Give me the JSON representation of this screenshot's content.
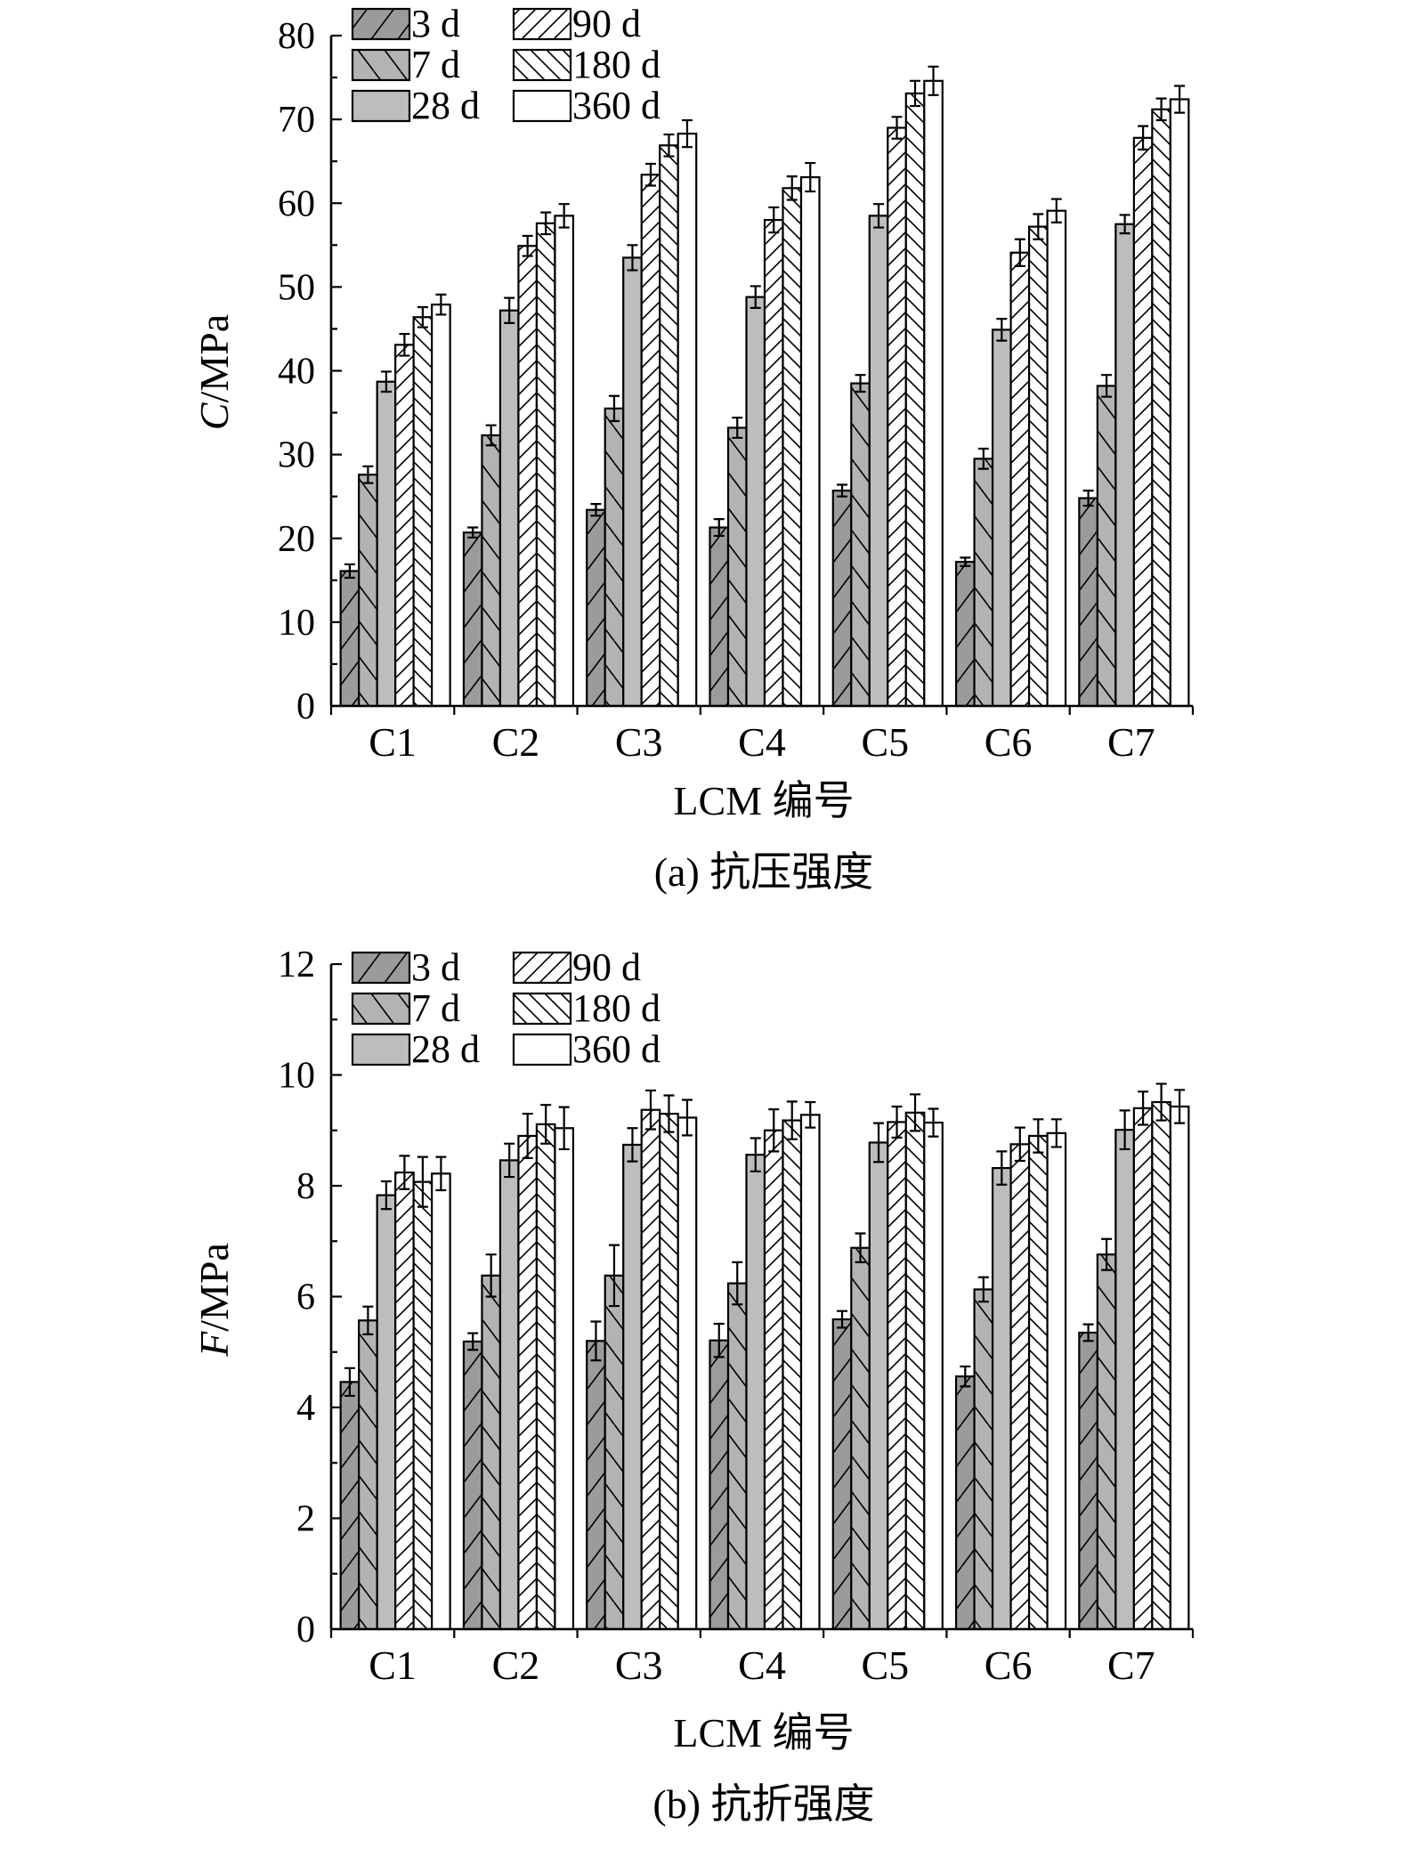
{
  "legend": [
    "3 d",
    "7 d",
    "28 d",
    "90 d",
    "180 d",
    "360 d"
  ],
  "styles": {
    "fills": [
      "#9b9b9b",
      "#b3b3b3",
      "#bdbdbd",
      "#ffffff",
      "#ffffff",
      "#ffffff"
    ],
    "hatch": [
      "fwd",
      "back",
      "none",
      "fwd",
      "back",
      "none"
    ]
  },
  "chart_data": [
    {
      "type": "bar",
      "title": "",
      "caption": "(a) 抗压强度",
      "xlabel": "LCM 编号",
      "ylabel_italic": "C",
      "ylabel_rest": "/MPa",
      "ylim": [
        0,
        80
      ],
      "yticks": [
        "0",
        "10",
        "20",
        "30",
        "40",
        "50",
        "60",
        "70",
        "80"
      ],
      "categories": [
        "C1",
        "C2",
        "C3",
        "C4",
        "C5",
        "C6",
        "C7"
      ],
      "legend_position": "top-left",
      "series": [
        {
          "name": "3 d",
          "values": [
            16.1,
            20.7,
            23.4,
            21.3,
            25.7,
            17.2,
            24.8
          ],
          "errors": [
            0.8,
            0.6,
            0.7,
            1.0,
            0.7,
            0.5,
            0.9
          ]
        },
        {
          "name": "7 d",
          "values": [
            27.6,
            32.3,
            35.5,
            33.2,
            38.5,
            29.5,
            38.2
          ],
          "errors": [
            1.0,
            1.2,
            1.5,
            1.2,
            1.0,
            1.2,
            1.3
          ]
        },
        {
          "name": "28 d",
          "values": [
            38.7,
            47.2,
            53.5,
            48.8,
            58.5,
            44.9,
            57.5
          ],
          "errors": [
            1.2,
            1.5,
            1.5,
            1.3,
            1.4,
            1.3,
            1.1
          ]
        },
        {
          "name": "90 d",
          "values": [
            43.1,
            54.9,
            63.4,
            58.0,
            69.0,
            54.1,
            67.8
          ],
          "errors": [
            1.3,
            1.2,
            1.3,
            1.5,
            1.3,
            1.6,
            1.4
          ]
        },
        {
          "name": "180 d",
          "values": [
            46.4,
            57.6,
            66.9,
            61.8,
            73.1,
            57.2,
            71.2
          ],
          "errors": [
            1.2,
            1.3,
            1.3,
            1.4,
            1.5,
            1.5,
            1.3
          ]
        },
        {
          "name": "360 d",
          "values": [
            47.9,
            58.5,
            68.3,
            63.1,
            74.6,
            59.1,
            72.4
          ],
          "errors": [
            1.2,
            1.4,
            1.6,
            1.7,
            1.7,
            1.4,
            1.6
          ]
        }
      ]
    },
    {
      "type": "bar",
      "title": "",
      "caption": "(b) 抗折强度",
      "xlabel": "LCM 编号",
      "ylabel_italic": "F",
      "ylabel_rest": "/MPa",
      "ylim": [
        0,
        12
      ],
      "yticks": [
        "0",
        "2",
        "4",
        "6",
        "8",
        "10",
        "12"
      ],
      "categories": [
        "C1",
        "C2",
        "C3",
        "C4",
        "C5",
        "C6",
        "C7"
      ],
      "legend_position": "top-left",
      "series": [
        {
          "name": "3 d",
          "values": [
            4.46,
            5.19,
            5.2,
            5.21,
            5.59,
            4.56,
            5.35
          ],
          "errors": [
            0.25,
            0.15,
            0.35,
            0.3,
            0.15,
            0.18,
            0.15
          ]
        },
        {
          "name": "7 d",
          "values": [
            5.57,
            6.38,
            6.38,
            6.24,
            6.88,
            6.13,
            6.76
          ],
          "errors": [
            0.25,
            0.38,
            0.55,
            0.38,
            0.26,
            0.22,
            0.28
          ]
        },
        {
          "name": "28 d",
          "values": [
            7.83,
            8.46,
            8.74,
            8.56,
            8.78,
            8.32,
            9.01
          ],
          "errors": [
            0.25,
            0.3,
            0.3,
            0.3,
            0.35,
            0.3,
            0.35
          ]
        },
        {
          "name": "90 d",
          "values": [
            8.24,
            8.9,
            9.37,
            9.0,
            9.15,
            8.75,
            9.4
          ],
          "errors": [
            0.3,
            0.4,
            0.35,
            0.38,
            0.28,
            0.3,
            0.3
          ]
        },
        {
          "name": "180 d",
          "values": [
            8.07,
            9.11,
            9.3,
            9.18,
            9.32,
            8.9,
            9.51
          ],
          "errors": [
            0.45,
            0.35,
            0.33,
            0.34,
            0.33,
            0.3,
            0.33
          ]
        },
        {
          "name": "360 d",
          "values": [
            8.22,
            9.04,
            9.23,
            9.28,
            9.14,
            8.95,
            9.43
          ],
          "errors": [
            0.3,
            0.38,
            0.32,
            0.23,
            0.25,
            0.25,
            0.3
          ]
        }
      ]
    }
  ]
}
